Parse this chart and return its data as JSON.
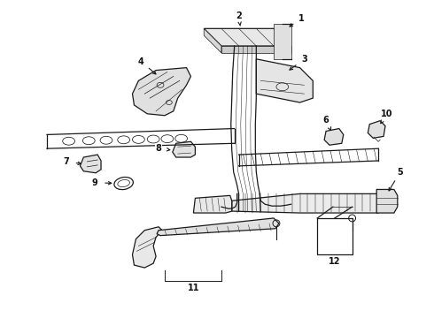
{
  "bg_color": "#ffffff",
  "line_color": "#1a1a1a",
  "label_color": "#111111",
  "fig_width": 4.9,
  "fig_height": 3.6,
  "dpi": 100,
  "lw_thin": 0.5,
  "lw_med": 0.9,
  "lw_thick": 1.3,
  "font_size": 7.0
}
